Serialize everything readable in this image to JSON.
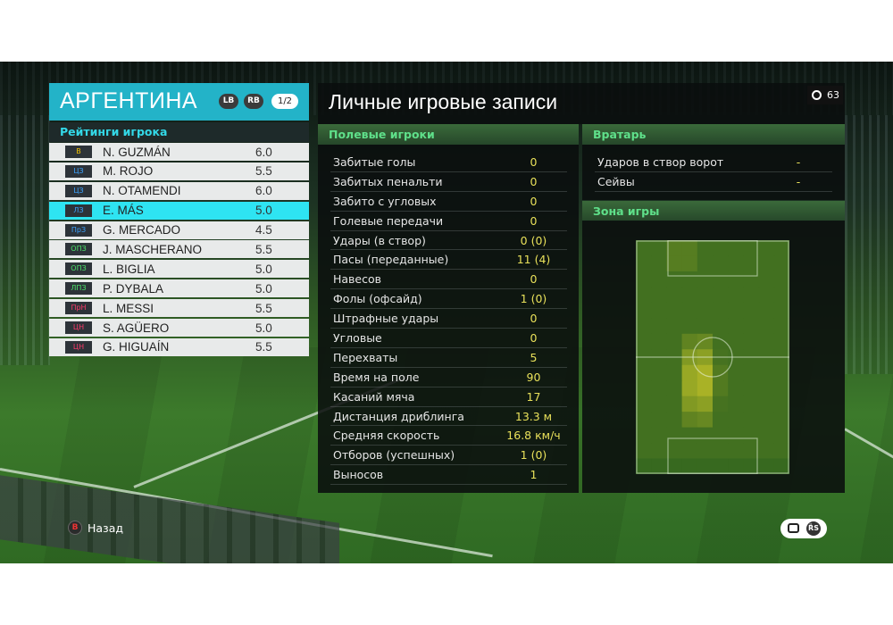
{
  "team": {
    "name": "АРГЕНТИНА",
    "lb_label": "LB",
    "rb_label": "RB",
    "page": "1/2"
  },
  "ratings_header": "Рейтинги игрока",
  "players": [
    {
      "pos": "В",
      "pos_color": "#f2c200",
      "name": "N. GUZMÁN",
      "rating": "6.0",
      "selected": false
    },
    {
      "pos": "ЦЗ",
      "pos_color": "#3ba3ff",
      "name": "M. ROJO",
      "rating": "5.5",
      "selected": false
    },
    {
      "pos": "ЦЗ",
      "pos_color": "#3ba3ff",
      "name": "N. OTAMENDI",
      "rating": "6.0",
      "selected": false
    },
    {
      "pos": "ЛЗ",
      "pos_color": "#3ba3ff",
      "name": "E. MÁS",
      "rating": "5.0",
      "selected": true
    },
    {
      "pos": "ПрЗ",
      "pos_color": "#3ba3ff",
      "name": "G. MERCADO",
      "rating": "4.5",
      "selected": false
    },
    {
      "pos": "ОПЗ",
      "pos_color": "#4de36a",
      "name": "J. MASCHERANO",
      "rating": "5.5",
      "selected": false
    },
    {
      "pos": "ОПЗ",
      "pos_color": "#4de36a",
      "name": "L. BIGLIA",
      "rating": "5.0",
      "selected": false
    },
    {
      "pos": "ЛПЗ",
      "pos_color": "#4de36a",
      "name": "P. DYBALA",
      "rating": "5.0",
      "selected": false
    },
    {
      "pos": "ПрН",
      "pos_color": "#ff3b6b",
      "name": "L. MESSI",
      "rating": "5.5",
      "selected": false
    },
    {
      "pos": "ЦН",
      "pos_color": "#ff3b6b",
      "name": "S. AGÜERO",
      "rating": "5.0",
      "selected": false
    },
    {
      "pos": "ЦН",
      "pos_color": "#ff3b6b",
      "name": "G. HIGUAÍN",
      "rating": "5.5",
      "selected": false
    }
  ],
  "records_title": "Личные игровые записи",
  "timer": "63",
  "field_section": "Полевые игроки",
  "field_stats": [
    {
      "label": "Забитые голы",
      "value": "0"
    },
    {
      "label": "Забитых пенальти",
      "value": "0"
    },
    {
      "label": "Забито с угловых",
      "value": "0"
    },
    {
      "label": "Голевые передачи",
      "value": "0"
    },
    {
      "label": "Удары (в створ)",
      "value": "0 (0)"
    },
    {
      "label": "Пасы (переданные)",
      "value": "11 (4)"
    },
    {
      "label": "Навесов",
      "value": "0"
    },
    {
      "label": "Фолы (офсайд)",
      "value": "1 (0)"
    },
    {
      "label": "Штрафные удары",
      "value": "0"
    },
    {
      "label": "Угловые",
      "value": "0"
    },
    {
      "label": "Перехваты",
      "value": "5"
    },
    {
      "label": "Время на поле",
      "value": "90"
    },
    {
      "label": "Касаний мяча",
      "value": "17"
    },
    {
      "label": "Дистанция дриблинга",
      "value": "13.3 м"
    },
    {
      "label": "Средняя скорость",
      "value": "16.8 км/ч"
    },
    {
      "label": "Отборов (успешных)",
      "value": "1 (0)"
    },
    {
      "label": "Выносов",
      "value": "1"
    }
  ],
  "gk_section": "Вратарь",
  "gk_stats": [
    {
      "label": "Ударов в створ ворот",
      "value": "-"
    },
    {
      "label": "Сейвы",
      "value": "-"
    }
  ],
  "zone_section": "Зона игры",
  "back_label": "Назад",
  "back_key": "B",
  "rs_key": "R̈S",
  "colors": {
    "accent": "#23b3c8",
    "selected_row": "#2ee4f2",
    "value_yellow": "#e8e05a",
    "section_green": "#5fe08a"
  }
}
